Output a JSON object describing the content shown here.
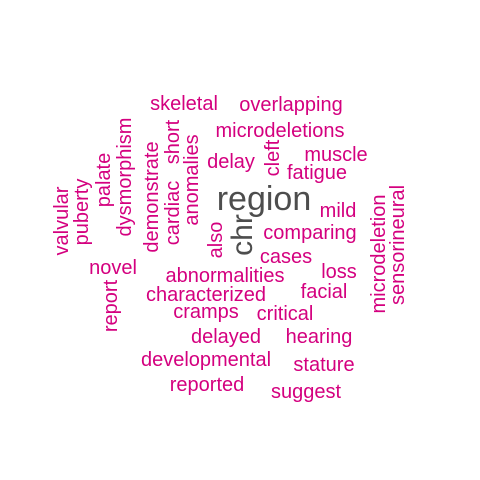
{
  "colors": {
    "primary": "#d4007f",
    "secondary": "#4d4d4d",
    "background": "#ffffff"
  },
  "cloud": {
    "words": [
      {
        "text": "region",
        "emphasis": "primary"
      },
      {
        "text": "chr",
        "emphasis": "primary"
      },
      {
        "text": "skeletal",
        "emphasis": "secondary"
      },
      {
        "text": "overlapping",
        "emphasis": "secondary"
      },
      {
        "text": "microdeletions",
        "emphasis": "secondary"
      },
      {
        "text": "dysmorphism",
        "emphasis": "secondary"
      },
      {
        "text": "palate",
        "emphasis": "secondary"
      },
      {
        "text": "puberty",
        "emphasis": "secondary"
      },
      {
        "text": "valvular",
        "emphasis": "secondary"
      },
      {
        "text": "demonstrate",
        "emphasis": "secondary"
      },
      {
        "text": "cardiac",
        "emphasis": "secondary"
      },
      {
        "text": "short",
        "emphasis": "secondary"
      },
      {
        "text": "anomalies",
        "emphasis": "secondary"
      },
      {
        "text": "delay",
        "emphasis": "secondary"
      },
      {
        "text": "cleft",
        "emphasis": "secondary"
      },
      {
        "text": "muscle",
        "emphasis": "secondary"
      },
      {
        "text": "fatigue",
        "emphasis": "secondary"
      },
      {
        "text": "mild",
        "emphasis": "secondary"
      },
      {
        "text": "microdeletion",
        "emphasis": "secondary"
      },
      {
        "text": "sensorineural",
        "emphasis": "secondary"
      },
      {
        "text": "also",
        "emphasis": "secondary"
      },
      {
        "text": "comparing",
        "emphasis": "secondary"
      },
      {
        "text": "cases",
        "emphasis": "secondary"
      },
      {
        "text": "novel",
        "emphasis": "secondary"
      },
      {
        "text": "abnormalities",
        "emphasis": "secondary"
      },
      {
        "text": "loss",
        "emphasis": "secondary"
      },
      {
        "text": "report",
        "emphasis": "secondary"
      },
      {
        "text": "characterized",
        "emphasis": "secondary"
      },
      {
        "text": "facial",
        "emphasis": "secondary"
      },
      {
        "text": "cramps",
        "emphasis": "secondary"
      },
      {
        "text": "critical",
        "emphasis": "secondary"
      },
      {
        "text": "delayed",
        "emphasis": "secondary"
      },
      {
        "text": "hearing",
        "emphasis": "secondary"
      },
      {
        "text": "developmental",
        "emphasis": "secondary"
      },
      {
        "text": "stature",
        "emphasis": "secondary"
      },
      {
        "text": "reported",
        "emphasis": "secondary"
      },
      {
        "text": "suggest",
        "emphasis": "secondary"
      }
    ]
  }
}
